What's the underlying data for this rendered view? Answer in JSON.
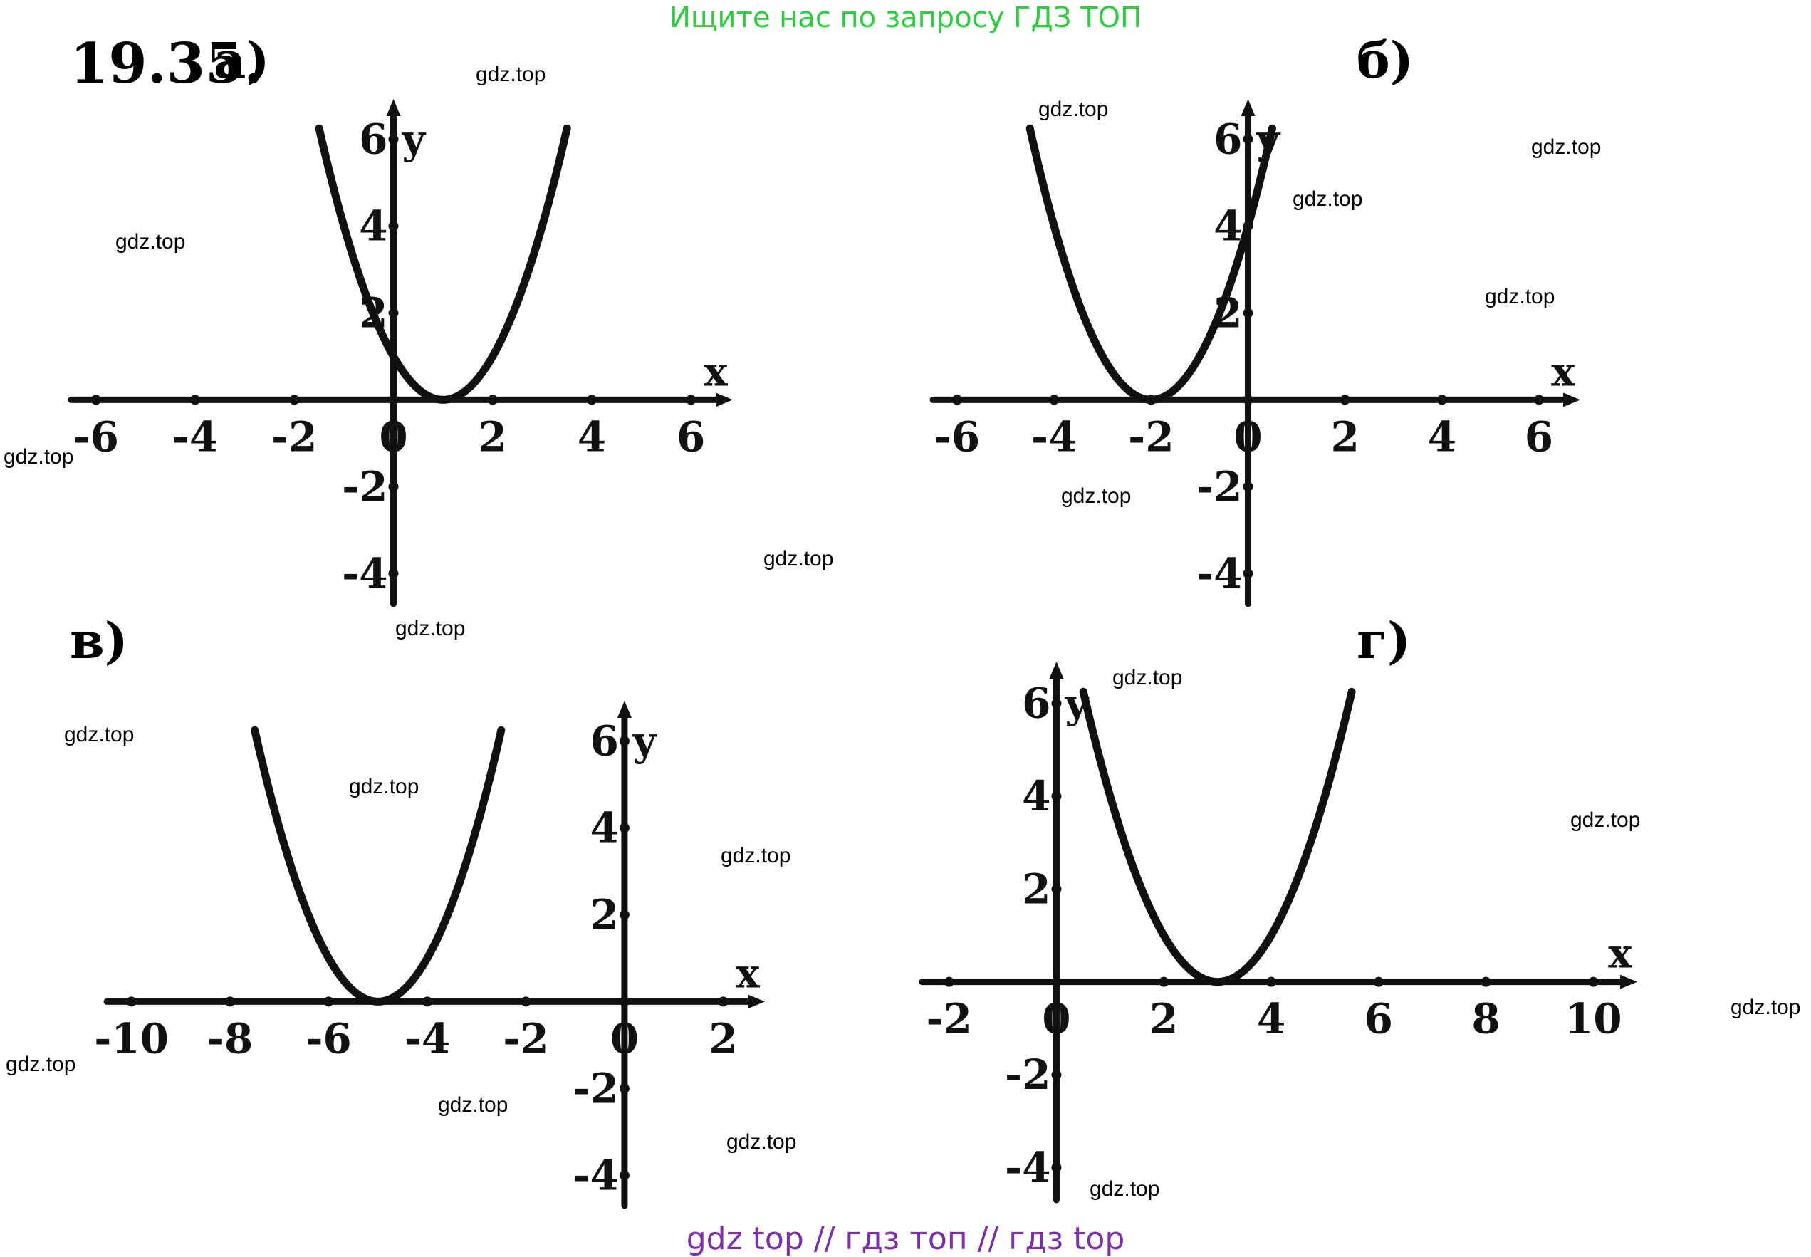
{
  "banner": {
    "text": "Ищите нас по запросу ГДЗ ТОП",
    "color": "#2ecc40"
  },
  "footer": {
    "text": "gdz top  //  гдз топ  //  гдз top",
    "color": "#7b2fa8"
  },
  "problem": {
    "number": "19.35."
  },
  "watermark": {
    "text": "gdz.top"
  },
  "chart_data": [
    {
      "label": "а)",
      "type": "line",
      "function": "y = (x - 1)^2",
      "vertex": [
        1,
        0
      ],
      "x_range": [
        -1.5,
        3.5
      ],
      "x_ticks": [
        "-6",
        "-4",
        "-2",
        "0",
        "2",
        "4",
        "6"
      ],
      "y_ticks": [
        "6",
        "4",
        "2",
        "-2",
        "-4"
      ],
      "xlabel": "x",
      "ylabel": "y",
      "xlim": [
        -6.5,
        6.5
      ],
      "ylim": [
        -4.7,
        6.5
      ]
    },
    {
      "label": "б)",
      "type": "line",
      "function": "y = (x + 2)^2",
      "vertex": [
        -2,
        0
      ],
      "x_range": [
        -4.5,
        0.5
      ],
      "x_ticks": [
        "-6",
        "-4",
        "-2",
        "0",
        "2",
        "4",
        "6"
      ],
      "y_ticks": [
        "6",
        "4",
        "2",
        "-2",
        "-4"
      ],
      "xlabel": "x",
      "ylabel": "y",
      "xlim": [
        -6.5,
        6.5
      ],
      "ylim": [
        -4.7,
        6.5
      ]
    },
    {
      "label": "в)",
      "type": "line",
      "function": "y = (x + 5)^2",
      "vertex": [
        -5,
        0
      ],
      "x_range": [
        -7.5,
        -2.5
      ],
      "x_ticks": [
        "-10",
        "-8",
        "-6",
        "-4",
        "-2",
        "0",
        "2"
      ],
      "y_ticks": [
        "6",
        "4",
        "2",
        "-2",
        "-4"
      ],
      "xlabel": "x",
      "ylabel": "y",
      "xlim": [
        -10.5,
        2.5
      ],
      "ylim": [
        -4.7,
        6.5
      ]
    },
    {
      "label": "г)",
      "type": "line",
      "function": "y = (x - 3)^2",
      "vertex": [
        3,
        0
      ],
      "x_range": [
        0.5,
        5.5
      ],
      "x_ticks": [
        "-2",
        "0",
        "2",
        "4",
        "6",
        "8",
        "10"
      ],
      "y_ticks": [
        "6",
        "4",
        "2",
        "-2",
        "-4"
      ],
      "xlabel": "x",
      "ylabel": "y",
      "xlim": [
        -2.5,
        10.5
      ],
      "ylim": [
        -4.7,
        6.5
      ]
    }
  ]
}
